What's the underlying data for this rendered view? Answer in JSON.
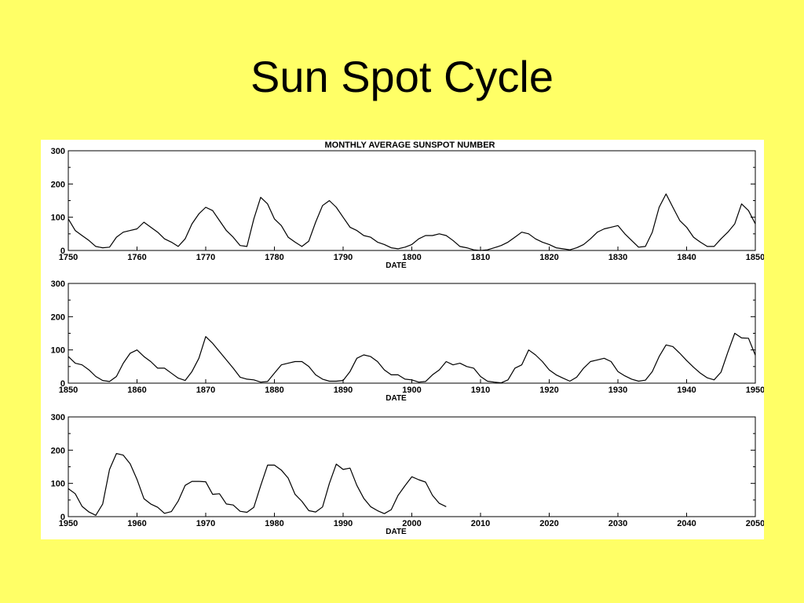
{
  "slide": {
    "title": "Sun Spot Cycle"
  },
  "colors": {
    "background": "#FFFF66",
    "plot_bg": "#ffffff",
    "line": "#000000"
  },
  "chart_data": {
    "type": "line",
    "title": "MONTHLY AVERAGE SUNSPOT NUMBER",
    "xlabel": "DATE",
    "ylabel": "",
    "grid": false,
    "legend": "none",
    "yticks": [
      "0",
      "100",
      "200",
      "300"
    ],
    "ylim": [
      0,
      300
    ],
    "panels": [
      {
        "xlim": [
          1750,
          1850
        ],
        "xticks": [
          "1750",
          "1760",
          "1770",
          "1780",
          "1790",
          "1800",
          "1810",
          "1820",
          "1830",
          "1840",
          "1850"
        ],
        "points": [
          [
            1750,
            95
          ],
          [
            1751,
            60
          ],
          [
            1752,
            45
          ],
          [
            1753,
            30
          ],
          [
            1754,
            12
          ],
          [
            1755,
            8
          ],
          [
            1756,
            10
          ],
          [
            1757,
            40
          ],
          [
            1758,
            55
          ],
          [
            1759,
            60
          ],
          [
            1760,
            65
          ],
          [
            1761,
            85
          ],
          [
            1762,
            70
          ],
          [
            1763,
            55
          ],
          [
            1764,
            35
          ],
          [
            1765,
            25
          ],
          [
            1766,
            12
          ],
          [
            1767,
            35
          ],
          [
            1768,
            80
          ],
          [
            1769,
            110
          ],
          [
            1770,
            130
          ],
          [
            1771,
            120
          ],
          [
            1772,
            90
          ],
          [
            1773,
            60
          ],
          [
            1774,
            40
          ],
          [
            1775,
            15
          ],
          [
            1776,
            12
          ],
          [
            1777,
            95
          ],
          [
            1778,
            160
          ],
          [
            1779,
            140
          ],
          [
            1780,
            95
          ],
          [
            1781,
            75
          ],
          [
            1782,
            40
          ],
          [
            1783,
            25
          ],
          [
            1784,
            12
          ],
          [
            1785,
            28
          ],
          [
            1786,
            85
          ],
          [
            1787,
            135
          ],
          [
            1788,
            150
          ],
          [
            1789,
            130
          ],
          [
            1790,
            100
          ],
          [
            1791,
            70
          ],
          [
            1792,
            60
          ],
          [
            1793,
            45
          ],
          [
            1794,
            40
          ],
          [
            1795,
            25
          ],
          [
            1796,
            18
          ],
          [
            1797,
            8
          ],
          [
            1798,
            5
          ],
          [
            1799,
            10
          ],
          [
            1800,
            18
          ],
          [
            1801,
            35
          ],
          [
            1802,
            45
          ],
          [
            1803,
            45
          ],
          [
            1804,
            50
          ],
          [
            1805,
            45
          ],
          [
            1806,
            30
          ],
          [
            1807,
            12
          ],
          [
            1808,
            8
          ],
          [
            1809,
            2
          ],
          [
            1810,
            0
          ],
          [
            1811,
            2
          ],
          [
            1812,
            8
          ],
          [
            1813,
            15
          ],
          [
            1814,
            25
          ],
          [
            1815,
            40
          ],
          [
            1816,
            55
          ],
          [
            1817,
            50
          ],
          [
            1818,
            35
          ],
          [
            1819,
            25
          ],
          [
            1820,
            18
          ],
          [
            1821,
            8
          ],
          [
            1822,
            5
          ],
          [
            1823,
            2
          ],
          [
            1824,
            8
          ],
          [
            1825,
            18
          ],
          [
            1826,
            35
          ],
          [
            1827,
            55
          ],
          [
            1828,
            65
          ],
          [
            1829,
            70
          ],
          [
            1830,
            75
          ],
          [
            1831,
            50
          ],
          [
            1832,
            30
          ],
          [
            1833,
            10
          ],
          [
            1834,
            12
          ],
          [
            1835,
            55
          ],
          [
            1836,
            130
          ],
          [
            1837,
            170
          ],
          [
            1838,
            130
          ],
          [
            1839,
            90
          ],
          [
            1840,
            70
          ],
          [
            1841,
            40
          ],
          [
            1842,
            25
          ],
          [
            1843,
            12
          ],
          [
            1844,
            12
          ],
          [
            1845,
            35
          ],
          [
            1846,
            55
          ],
          [
            1847,
            80
          ],
          [
            1848,
            140
          ],
          [
            1849,
            120
          ],
          [
            1850,
            80
          ]
        ]
      },
      {
        "xlim": [
          1850,
          1950
        ],
        "xticks": [
          "1850",
          "1860",
          "1870",
          "1880",
          "1890",
          "1900",
          "1910",
          "1920",
          "1930",
          "1940",
          "1950"
        ],
        "points": [
          [
            1850,
            80
          ],
          [
            1851,
            60
          ],
          [
            1852,
            55
          ],
          [
            1853,
            40
          ],
          [
            1854,
            20
          ],
          [
            1855,
            8
          ],
          [
            1856,
            5
          ],
          [
            1857,
            20
          ],
          [
            1858,
            60
          ],
          [
            1859,
            90
          ],
          [
            1860,
            100
          ],
          [
            1861,
            80
          ],
          [
            1862,
            65
          ],
          [
            1863,
            45
          ],
          [
            1864,
            45
          ],
          [
            1865,
            30
          ],
          [
            1866,
            15
          ],
          [
            1867,
            8
          ],
          [
            1868,
            35
          ],
          [
            1869,
            75
          ],
          [
            1870,
            140
          ],
          [
            1871,
            120
          ],
          [
            1872,
            95
          ],
          [
            1873,
            70
          ],
          [
            1874,
            45
          ],
          [
            1875,
            18
          ],
          [
            1876,
            12
          ],
          [
            1877,
            10
          ],
          [
            1878,
            3
          ],
          [
            1879,
            5
          ],
          [
            1880,
            30
          ],
          [
            1881,
            55
          ],
          [
            1882,
            60
          ],
          [
            1883,
            65
          ],
          [
            1884,
            65
          ],
          [
            1885,
            50
          ],
          [
            1886,
            25
          ],
          [
            1887,
            12
          ],
          [
            1888,
            6
          ],
          [
            1889,
            6
          ],
          [
            1890,
            8
          ],
          [
            1891,
            35
          ],
          [
            1892,
            75
          ],
          [
            1893,
            85
          ],
          [
            1894,
            80
          ],
          [
            1895,
            65
          ],
          [
            1896,
            40
          ],
          [
            1897,
            25
          ],
          [
            1898,
            25
          ],
          [
            1899,
            12
          ],
          [
            1900,
            10
          ],
          [
            1901,
            3
          ],
          [
            1902,
            5
          ],
          [
            1903,
            25
          ],
          [
            1904,
            40
          ],
          [
            1905,
            65
          ],
          [
            1906,
            55
          ],
          [
            1907,
            60
          ],
          [
            1908,
            50
          ],
          [
            1909,
            45
          ],
          [
            1910,
            20
          ],
          [
            1911,
            6
          ],
          [
            1912,
            3
          ],
          [
            1913,
            1
          ],
          [
            1914,
            10
          ],
          [
            1915,
            45
          ],
          [
            1916,
            55
          ],
          [
            1917,
            100
          ],
          [
            1918,
            85
          ],
          [
            1919,
            65
          ],
          [
            1920,
            40
          ],
          [
            1921,
            25
          ],
          [
            1922,
            15
          ],
          [
            1923,
            6
          ],
          [
            1924,
            18
          ],
          [
            1925,
            45
          ],
          [
            1926,
            65
          ],
          [
            1927,
            70
          ],
          [
            1928,
            75
          ],
          [
            1929,
            65
          ],
          [
            1930,
            35
          ],
          [
            1931,
            22
          ],
          [
            1932,
            12
          ],
          [
            1933,
            6
          ],
          [
            1934,
            9
          ],
          [
            1935,
            35
          ],
          [
            1936,
            80
          ],
          [
            1937,
            115
          ],
          [
            1938,
            110
          ],
          [
            1939,
            90
          ],
          [
            1940,
            68
          ],
          [
            1941,
            48
          ],
          [
            1942,
            30
          ],
          [
            1943,
            16
          ],
          [
            1944,
            10
          ],
          [
            1945,
            33
          ],
          [
            1946,
            93
          ],
          [
            1947,
            150
          ],
          [
            1948,
            136
          ],
          [
            1949,
            135
          ],
          [
            1950,
            84
          ]
        ]
      },
      {
        "xlim": [
          1950,
          2050
        ],
        "xticks": [
          "1950",
          "1960",
          "1970",
          "1980",
          "1990",
          "2000",
          "2010",
          "2020",
          "2030",
          "2040",
          "2050"
        ],
        "points": [
          [
            1950,
            84
          ],
          [
            1951,
            69
          ],
          [
            1952,
            31
          ],
          [
            1953,
            14
          ],
          [
            1954,
            4
          ],
          [
            1955,
            38
          ],
          [
            1956,
            142
          ],
          [
            1957,
            190
          ],
          [
            1958,
            185
          ],
          [
            1959,
            159
          ],
          [
            1960,
            112
          ],
          [
            1961,
            54
          ],
          [
            1962,
            38
          ],
          [
            1963,
            28
          ],
          [
            1964,
            10
          ],
          [
            1965,
            15
          ],
          [
            1966,
            47
          ],
          [
            1967,
            94
          ],
          [
            1968,
            106
          ],
          [
            1969,
            106
          ],
          [
            1970,
            105
          ],
          [
            1971,
            67
          ],
          [
            1972,
            69
          ],
          [
            1973,
            38
          ],
          [
            1974,
            35
          ],
          [
            1975,
            16
          ],
          [
            1976,
            13
          ],
          [
            1977,
            28
          ],
          [
            1978,
            93
          ],
          [
            1979,
            155
          ],
          [
            1980,
            155
          ],
          [
            1981,
            140
          ],
          [
            1982,
            116
          ],
          [
            1983,
            67
          ],
          [
            1984,
            46
          ],
          [
            1985,
            18
          ],
          [
            1986,
            14
          ],
          [
            1987,
            29
          ],
          [
            1988,
            100
          ],
          [
            1989,
            158
          ],
          [
            1990,
            142
          ],
          [
            1991,
            146
          ],
          [
            1992,
            94
          ],
          [
            1993,
            55
          ],
          [
            1994,
            30
          ],
          [
            1995,
            18
          ],
          [
            1996,
            9
          ],
          [
            1997,
            21
          ],
          [
            1998,
            64
          ],
          [
            1999,
            93
          ],
          [
            2000,
            120
          ],
          [
            2001,
            111
          ],
          [
            2002,
            104
          ],
          [
            2003,
            64
          ],
          [
            2004,
            40
          ],
          [
            2005,
            30
          ]
        ]
      }
    ]
  }
}
